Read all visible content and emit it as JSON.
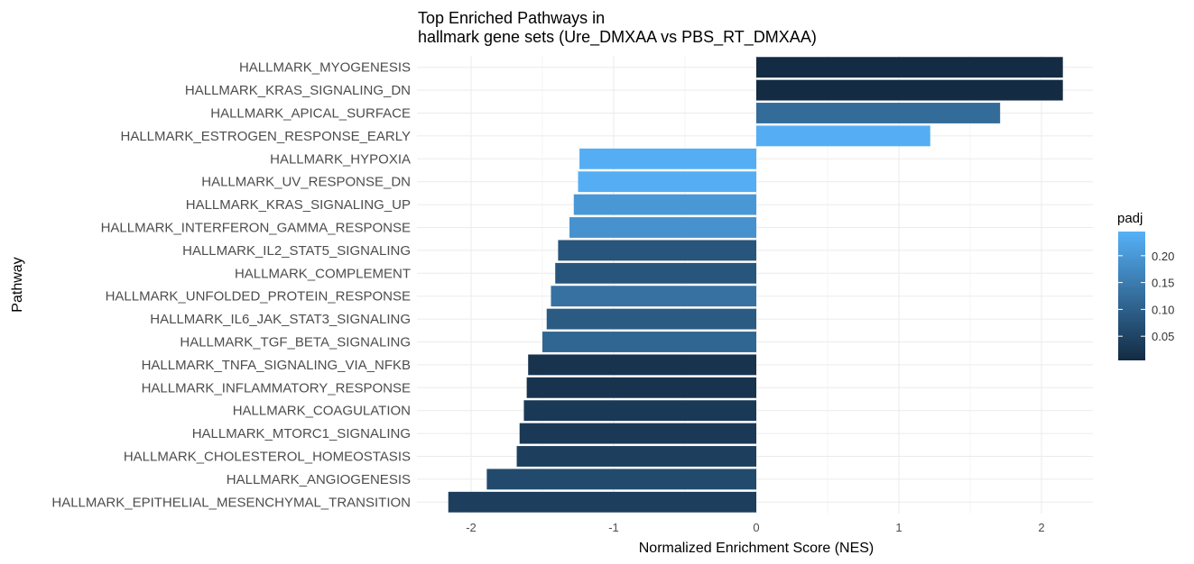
{
  "chart_data": {
    "type": "bar",
    "orientation": "horizontal",
    "title_lines": [
      "Top Enriched Pathways in",
      "hallmark gene sets (Ure_DMXAA vs PBS_RT_DMXAA)"
    ],
    "xlabel": "Normalized Enrichment Score (NES)",
    "ylabel": "Pathway",
    "xlim": [
      -2.3,
      2.35
    ],
    "x_ticks": [
      -2,
      -1,
      0,
      1,
      2
    ],
    "x_tick_labels": [
      "-2",
      "-1",
      "0",
      "1",
      "2"
    ],
    "grid": true,
    "categories": [
      "HALLMARK_MYOGENESIS",
      "HALLMARK_KRAS_SIGNALING_DN",
      "HALLMARK_APICAL_SURFACE",
      "HALLMARK_ESTROGEN_RESPONSE_EARLY",
      "HALLMARK_HYPOXIA",
      "HALLMARK_UV_RESPONSE_DN",
      "HALLMARK_KRAS_SIGNALING_UP",
      "HALLMARK_INTERFERON_GAMMA_RESPONSE",
      "HALLMARK_IL2_STAT5_SIGNALING",
      "HALLMARK_COMPLEMENT",
      "HALLMARK_UNFOLDED_PROTEIN_RESPONSE",
      "HALLMARK_IL6_JAK_STAT3_SIGNALING",
      "HALLMARK_TGF_BETA_SIGNALING",
      "HALLMARK_TNFA_SIGNALING_VIA_NFKB",
      "HALLMARK_INFLAMMATORY_RESPONSE",
      "HALLMARK_COAGULATION",
      "HALLMARK_MTORC1_SIGNALING",
      "HALLMARK_CHOLESTEROL_HOMEOSTASIS",
      "HALLMARK_ANGIOGENESIS",
      "HALLMARK_EPITHELIAL_MESENCHYMAL_TRANSITION"
    ],
    "values": [
      2.15,
      2.15,
      1.71,
      1.22,
      -1.24,
      -1.25,
      -1.28,
      -1.31,
      -1.39,
      -1.41,
      -1.44,
      -1.47,
      -1.5,
      -1.6,
      -1.61,
      -1.63,
      -1.66,
      -1.68,
      -1.89,
      -2.16
    ],
    "padj": [
      0.005,
      0.005,
      0.12,
      0.24,
      0.24,
      0.24,
      0.2,
      0.19,
      0.08,
      0.08,
      0.13,
      0.09,
      0.11,
      0.02,
      0.02,
      0.03,
      0.03,
      0.04,
      0.06,
      0.04
    ],
    "legend": {
      "title": "padj",
      "placement": "right",
      "range": [
        0.005,
        0.245
      ],
      "ticks": [
        0.05,
        0.1,
        0.15,
        0.2
      ],
      "tick_labels": [
        "0.05",
        "0.10",
        "0.15",
        "0.20"
      ],
      "color_low": "#132b43",
      "color_high": "#56b1f7"
    }
  }
}
